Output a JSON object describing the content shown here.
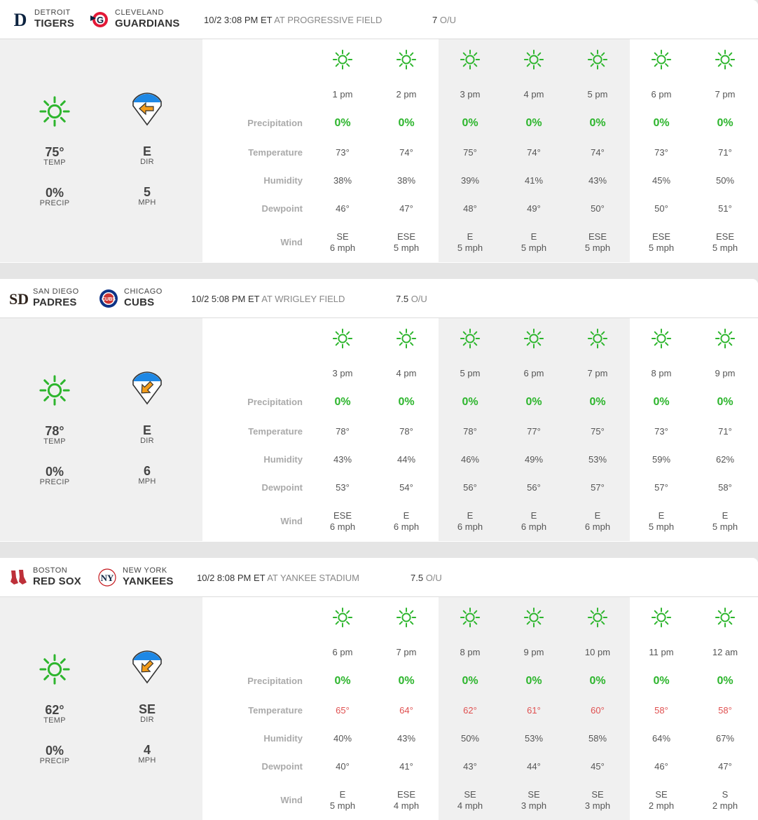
{
  "labels": {
    "temp": "TEMP",
    "dir": "DIR",
    "precip": "PRECIP",
    "mph": "MPH",
    "precipitation": "Precipitation",
    "temperature": "Temperature",
    "humidity": "Humidity",
    "dewpoint": "Dewpoint",
    "wind": "Wind",
    "ou": "O/U"
  },
  "colors": {
    "sun": "#2db52d",
    "arrow": "#f39c1b",
    "diamond": "#1e88e5",
    "red_temp": "#e05050"
  },
  "games": [
    {
      "away": {
        "city": "DETROIT",
        "name": "TIGERS",
        "logo": "tigers-logo"
      },
      "home": {
        "city": "CLEVELAND",
        "name": "GUARDIANS",
        "logo": "guardians-logo"
      },
      "time": "10/2 3:08 PM ET",
      "venue": "AT PROGRESSIVE FIELD",
      "ou_value": "7",
      "summary": {
        "temp": "75°",
        "precip": "0%",
        "dir": "E",
        "mph": "5",
        "arrow_rotation_deg": 180
      },
      "hours": [
        {
          "time": "1 pm",
          "precip": "0%",
          "temp": "73°",
          "humidity": "38%",
          "dewpoint": "46°",
          "wind_dir": "SE",
          "wind_speed": "6 mph"
        },
        {
          "time": "2 pm",
          "precip": "0%",
          "temp": "74°",
          "humidity": "38%",
          "dewpoint": "47°",
          "wind_dir": "ESE",
          "wind_speed": "5 mph"
        },
        {
          "time": "3 pm",
          "precip": "0%",
          "temp": "75°",
          "humidity": "39%",
          "dewpoint": "48°",
          "wind_dir": "E",
          "wind_speed": "5 mph"
        },
        {
          "time": "4 pm",
          "precip": "0%",
          "temp": "74°",
          "humidity": "41%",
          "dewpoint": "49°",
          "wind_dir": "E",
          "wind_speed": "5 mph"
        },
        {
          "time": "5 pm",
          "precip": "0%",
          "temp": "74°",
          "humidity": "43%",
          "dewpoint": "50°",
          "wind_dir": "ESE",
          "wind_speed": "5 mph"
        },
        {
          "time": "6 pm",
          "precip": "0%",
          "temp": "73°",
          "humidity": "45%",
          "dewpoint": "50°",
          "wind_dir": "ESE",
          "wind_speed": "5 mph"
        },
        {
          "time": "7 pm",
          "precip": "0%",
          "temp": "71°",
          "humidity": "50%",
          "dewpoint": "51°",
          "wind_dir": "ESE",
          "wind_speed": "5 mph"
        }
      ]
    },
    {
      "away": {
        "city": "SAN DIEGO",
        "name": "PADRES",
        "logo": "padres-logo"
      },
      "home": {
        "city": "CHICAGO",
        "name": "CUBS",
        "logo": "cubs-logo"
      },
      "time": "10/2 5:08 PM ET",
      "venue": "AT WRIGLEY FIELD",
      "ou_value": "7.5",
      "summary": {
        "temp": "78°",
        "precip": "0%",
        "dir": "E",
        "mph": "6",
        "arrow_rotation_deg": 135
      },
      "hours": [
        {
          "time": "3 pm",
          "precip": "0%",
          "temp": "78°",
          "humidity": "43%",
          "dewpoint": "53°",
          "wind_dir": "ESE",
          "wind_speed": "6 mph"
        },
        {
          "time": "4 pm",
          "precip": "0%",
          "temp": "78°",
          "humidity": "44%",
          "dewpoint": "54°",
          "wind_dir": "E",
          "wind_speed": "6 mph"
        },
        {
          "time": "5 pm",
          "precip": "0%",
          "temp": "78°",
          "humidity": "46%",
          "dewpoint": "56°",
          "wind_dir": "E",
          "wind_speed": "6 mph"
        },
        {
          "time": "6 pm",
          "precip": "0%",
          "temp": "77°",
          "humidity": "49%",
          "dewpoint": "56°",
          "wind_dir": "E",
          "wind_speed": "6 mph"
        },
        {
          "time": "7 pm",
          "precip": "0%",
          "temp": "75°",
          "humidity": "53%",
          "dewpoint": "57°",
          "wind_dir": "E",
          "wind_speed": "6 mph"
        },
        {
          "time": "8 pm",
          "precip": "0%",
          "temp": "73°",
          "humidity": "59%",
          "dewpoint": "57°",
          "wind_dir": "E",
          "wind_speed": "5 mph"
        },
        {
          "time": "9 pm",
          "precip": "0%",
          "temp": "71°",
          "humidity": "62%",
          "dewpoint": "58°",
          "wind_dir": "E",
          "wind_speed": "5 mph"
        }
      ]
    },
    {
      "away": {
        "city": "BOSTON",
        "name": "RED SOX",
        "logo": "redsox-logo"
      },
      "home": {
        "city": "NEW YORK",
        "name": "YANKEES",
        "logo": "yankees-logo"
      },
      "time": "10/2 8:08 PM ET",
      "venue": "AT YANKEE STADIUM",
      "ou_value": "7.5",
      "summary": {
        "temp": "62°",
        "precip": "0%",
        "dir": "SE",
        "mph": "4",
        "arrow_rotation_deg": 135
      },
      "hours": [
        {
          "time": "6 pm",
          "precip": "0%",
          "temp": "65°",
          "humidity": "40%",
          "dewpoint": "40°",
          "wind_dir": "E",
          "wind_speed": "5 mph",
          "temp_red": true
        },
        {
          "time": "7 pm",
          "precip": "0%",
          "temp": "64°",
          "humidity": "43%",
          "dewpoint": "41°",
          "wind_dir": "ESE",
          "wind_speed": "4 mph",
          "temp_red": true
        },
        {
          "time": "8 pm",
          "precip": "0%",
          "temp": "62°",
          "humidity": "50%",
          "dewpoint": "43°",
          "wind_dir": "SE",
          "wind_speed": "4 mph",
          "temp_red": true
        },
        {
          "time": "9 pm",
          "precip": "0%",
          "temp": "61°",
          "humidity": "53%",
          "dewpoint": "44°",
          "wind_dir": "SE",
          "wind_speed": "3 mph",
          "temp_red": true
        },
        {
          "time": "10 pm",
          "precip": "0%",
          "temp": "60°",
          "humidity": "58%",
          "dewpoint": "45°",
          "wind_dir": "SE",
          "wind_speed": "3 mph",
          "temp_red": true
        },
        {
          "time": "11 pm",
          "precip": "0%",
          "temp": "58°",
          "humidity": "64%",
          "dewpoint": "46°",
          "wind_dir": "SE",
          "wind_speed": "2 mph",
          "temp_red": true
        },
        {
          "time": "12 am",
          "precip": "0%",
          "temp": "58°",
          "humidity": "67%",
          "dewpoint": "47°",
          "wind_dir": "S",
          "wind_speed": "2 mph",
          "temp_red": true
        }
      ]
    }
  ]
}
